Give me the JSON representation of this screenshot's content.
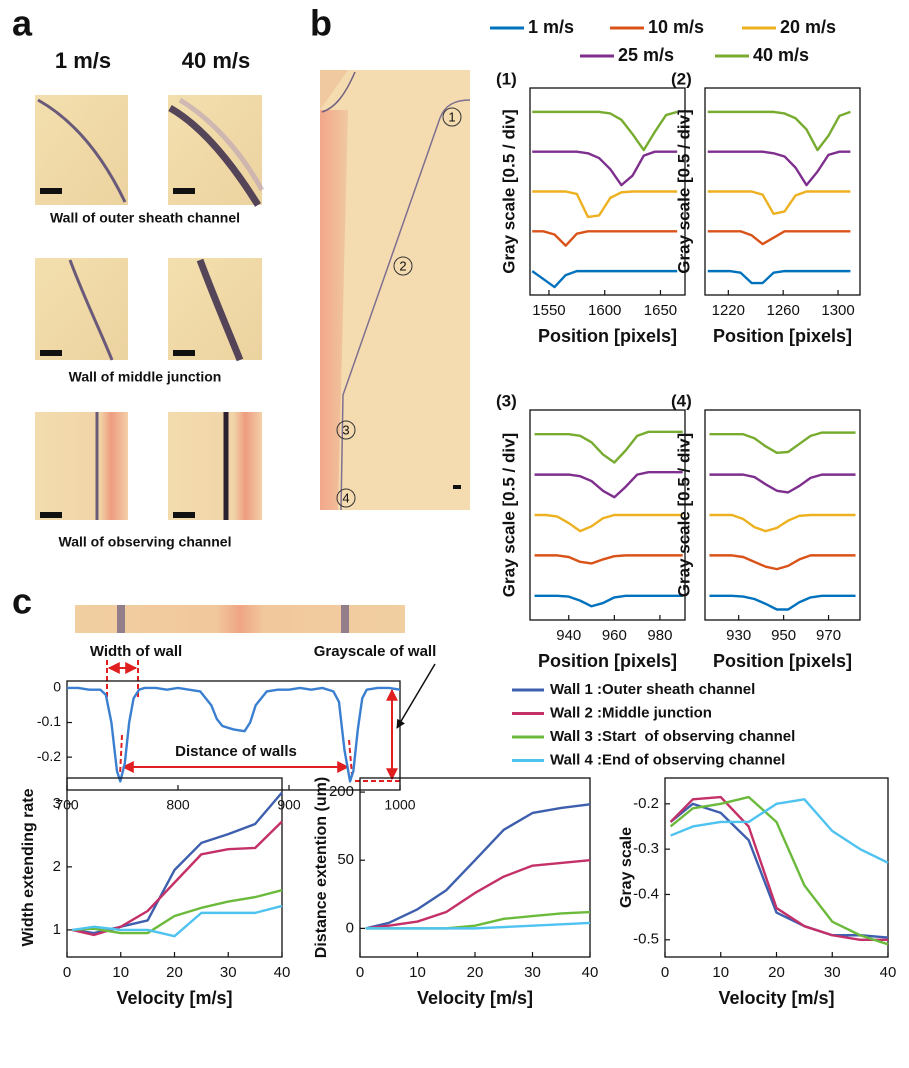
{
  "panel_labels": [
    "a",
    "b",
    "c"
  ],
  "panel_a": {
    "column_titles": [
      "1 m/s",
      "40 m/s"
    ],
    "captions": [
      "Wall of outer sheath channel",
      "Wall of middle junction",
      "Wall of observing channel"
    ]
  },
  "panel_b": {
    "markers": [
      "1",
      "2",
      "3",
      "4"
    ]
  },
  "panel_c": {
    "annotations": [
      "Width of wall",
      "Grayscale of wall",
      "Distance of walls"
    ]
  },
  "chart_data": [
    {
      "type": "line",
      "label": "(1)",
      "xlabel": "Position [pixels]",
      "ylabel": "Gray scale [0.5 / div]",
      "x": [
        1535,
        1545,
        1555,
        1565,
        1575,
        1585,
        1595,
        1605,
        1615,
        1625,
        1635,
        1645,
        1655,
        1665
      ],
      "xlim": [
        1533,
        1672
      ],
      "xticks": [
        1550,
        1600,
        1650
      ],
      "ylim": [
        -0.3,
        2.3
      ],
      "series": [
        {
          "name": "1 m/s",
          "color": "#0072bd",
          "values": [
            0,
            -0.1,
            -0.2,
            -0.05,
            0,
            0,
            0,
            0,
            0,
            0,
            0,
            0,
            0,
            0
          ]
        },
        {
          "name": "10 m/s",
          "color": "#d95319",
          "values": [
            0.5,
            0.5,
            0.46,
            0.32,
            0.47,
            0.5,
            0.5,
            0.5,
            0.5,
            0.5,
            0.5,
            0.5,
            0.5,
            0.5
          ]
        },
        {
          "name": "20 m/s",
          "color": "#edb120",
          "values": [
            1,
            1,
            1,
            1,
            0.97,
            0.68,
            0.7,
            0.92,
            0.99,
            1,
            1,
            1,
            1,
            1
          ]
        },
        {
          "name": "25 m/s",
          "color": "#7e2f8e",
          "values": [
            1.5,
            1.5,
            1.5,
            1.5,
            1.5,
            1.48,
            1.42,
            1.28,
            1.08,
            1.2,
            1.45,
            1.5,
            1.5,
            1.5
          ]
        },
        {
          "name": "40 m/s",
          "color": "#77ac30",
          "values": [
            2,
            2,
            2,
            2,
            2,
            2,
            2,
            1.98,
            1.9,
            1.72,
            1.52,
            1.75,
            1.96,
            2
          ]
        }
      ]
    },
    {
      "type": "line",
      "label": "(2)",
      "xlabel": "Position [pixels]",
      "ylabel": "Gray scale [0.5 / div]",
      "x": [
        1205,
        1213,
        1221,
        1229,
        1237,
        1245,
        1253,
        1261,
        1269,
        1277,
        1285,
        1293,
        1301,
        1309
      ],
      "xlim": [
        1203,
        1316
      ],
      "xticks": [
        1220,
        1260,
        1300
      ],
      "ylim": [
        -0.3,
        2.3
      ],
      "series": [
        {
          "values": [
            0,
            0,
            0,
            -0.02,
            -0.15,
            -0.15,
            -0.02,
            0,
            0,
            0,
            0,
            0,
            0,
            0
          ]
        },
        {
          "values": [
            0.5,
            0.5,
            0.5,
            0.5,
            0.45,
            0.34,
            0.42,
            0.5,
            0.5,
            0.5,
            0.5,
            0.5,
            0.5,
            0.5
          ]
        },
        {
          "values": [
            1,
            1,
            1,
            1,
            1,
            0.96,
            0.72,
            0.75,
            0.95,
            1,
            1,
            1,
            1,
            1
          ]
        },
        {
          "values": [
            1.5,
            1.5,
            1.5,
            1.5,
            1.5,
            1.5,
            1.48,
            1.44,
            1.3,
            1.08,
            1.25,
            1.46,
            1.5,
            1.5
          ]
        },
        {
          "values": [
            2,
            2,
            2,
            2,
            2,
            2,
            2,
            1.98,
            1.92,
            1.78,
            1.52,
            1.7,
            1.95,
            2
          ]
        }
      ]
    },
    {
      "type": "line",
      "label": "(3)",
      "xlabel": "Position [pixels]",
      "ylabel": "Gray scale [0.5 / div]",
      "x": [
        925,
        930,
        935,
        940,
        945,
        950,
        955,
        960,
        965,
        970,
        975,
        980,
        985,
        990
      ],
      "xlim": [
        923,
        991
      ],
      "xticks": [
        940,
        960,
        980
      ],
      "ylim": [
        -0.3,
        2.3
      ],
      "series": [
        {
          "values": [
            0,
            0,
            0,
            -0.01,
            -0.06,
            -0.13,
            -0.09,
            -0.02,
            0,
            0,
            0,
            0,
            0,
            0
          ]
        },
        {
          "values": [
            0.5,
            0.5,
            0.5,
            0.48,
            0.42,
            0.4,
            0.45,
            0.49,
            0.5,
            0.5,
            0.5,
            0.5,
            0.5,
            0.5
          ]
        },
        {
          "values": [
            1,
            1,
            0.98,
            0.9,
            0.8,
            0.86,
            0.96,
            1,
            1,
            1,
            1,
            1,
            1,
            1
          ]
        },
        {
          "values": [
            1.5,
            1.5,
            1.5,
            1.5,
            1.48,
            1.42,
            1.3,
            1.22,
            1.35,
            1.5,
            1.53,
            1.53,
            1.53,
            1.53
          ]
        },
        {
          "values": [
            2,
            2,
            2,
            2,
            1.98,
            1.9,
            1.75,
            1.65,
            1.8,
            1.98,
            2.03,
            2.03,
            2.03,
            2.03
          ]
        }
      ]
    },
    {
      "type": "line",
      "label": "(4)",
      "xlabel": "Position [pixels]",
      "ylabel": "Gray scale [0.5 / div]",
      "x": [
        917,
        922,
        927,
        932,
        937,
        942,
        947,
        952,
        957,
        962,
        967,
        972,
        977,
        982
      ],
      "xlim": [
        915,
        984
      ],
      "xticks": [
        930,
        950,
        970
      ],
      "ylim": [
        -0.3,
        2.3
      ],
      "series": [
        {
          "values": [
            0,
            0,
            0,
            -0.01,
            -0.04,
            -0.1,
            -0.17,
            -0.17,
            -0.08,
            -0.02,
            0,
            0,
            0,
            0
          ]
        },
        {
          "values": [
            0.5,
            0.5,
            0.5,
            0.48,
            0.42,
            0.36,
            0.33,
            0.37,
            0.45,
            0.5,
            0.5,
            0.5,
            0.5,
            0.5
          ]
        },
        {
          "values": [
            1,
            1,
            1,
            0.95,
            0.85,
            0.8,
            0.84,
            0.93,
            0.99,
            1,
            1,
            1,
            1,
            1
          ]
        },
        {
          "values": [
            1.5,
            1.5,
            1.5,
            1.5,
            1.47,
            1.38,
            1.3,
            1.28,
            1.36,
            1.46,
            1.5,
            1.5,
            1.5,
            1.5
          ]
        },
        {
          "values": [
            2,
            2,
            2,
            2,
            1.95,
            1.85,
            1.77,
            1.78,
            1.88,
            1.98,
            2.02,
            2.02,
            2.02,
            2.02
          ]
        }
      ]
    },
    {
      "type": "line",
      "color": "#3a7fd0",
      "x": [
        700,
        710,
        720,
        730,
        735,
        740,
        745,
        748,
        752,
        756,
        760,
        765,
        770,
        780,
        790,
        800,
        810,
        820,
        830,
        835,
        840,
        850,
        860,
        865,
        870,
        880,
        890,
        900,
        910,
        920,
        930,
        940,
        945,
        950,
        955,
        958,
        962,
        966,
        970,
        980,
        990,
        1000
      ],
      "values": [
        0,
        0,
        -0.005,
        -0.005,
        -0.02,
        -0.1,
        -0.24,
        -0.27,
        -0.22,
        -0.1,
        -0.03,
        -0.005,
        0,
        0,
        -0.005,
        0,
        -0.005,
        -0.01,
        -0.05,
        -0.09,
        -0.11,
        -0.12,
        -0.125,
        -0.1,
        -0.05,
        -0.01,
        -0.005,
        -0.005,
        0,
        -0.005,
        0,
        -0.01,
        -0.04,
        -0.18,
        -0.27,
        -0.24,
        -0.12,
        -0.03,
        -0.005,
        0,
        0,
        -0.005
      ],
      "xlim": [
        700,
        1000
      ],
      "xticks": [
        700,
        800,
        900,
        1000
      ],
      "ylim": [
        -0.295,
        0.02
      ],
      "yticks": [
        0,
        -0.1,
        -0.2
      ]
    },
    {
      "type": "line",
      "xlabel": "Velocity [m/s]",
      "ylabel": "Width extending rate",
      "x": [
        1,
        5,
        10,
        15,
        20,
        25,
        30,
        35,
        40
      ],
      "xlim": [
        0,
        40
      ],
      "xticks": [
        0,
        10,
        20,
        30,
        40
      ],
      "ylim": [
        0.57,
        3.41
      ],
      "yticks": [
        1,
        2,
        3
      ],
      "series": [
        {
          "name": "Wall 1 :Outer sheath channel",
          "color": "#3e5fae",
          "values": [
            1,
            0.95,
            1.05,
            1.15,
            1.95,
            2.38,
            2.52,
            2.68,
            3.18
          ]
        },
        {
          "name": "Wall 2 :Middle junction",
          "color": "#c43068",
          "values": [
            1,
            0.92,
            1.05,
            1.3,
            1.75,
            2.2,
            2.28,
            2.3,
            2.72
          ]
        },
        {
          "name": "Wall 3 :Start  of observing channel",
          "color": "#6cba3c",
          "values": [
            1,
            1.02,
            0.95,
            0.95,
            1.22,
            1.35,
            1.45,
            1.52,
            1.63
          ]
        },
        {
          "name": "Wall 4 :End of observing channel",
          "color": "#4fc3f0",
          "values": [
            1,
            1.05,
            1,
            1,
            0.9,
            1.27,
            1.27,
            1.27,
            1.38
          ]
        }
      ]
    },
    {
      "type": "line",
      "xlabel": "Velocity [m/s]",
      "ylabel": "Distance extention (um)",
      "yscale": "piecewise",
      "x": [
        1,
        5,
        10,
        15,
        20,
        25,
        30,
        35,
        40
      ],
      "xlim": [
        0,
        40
      ],
      "xticks": [
        0,
        10,
        20,
        30,
        40
      ],
      "ylim": [
        -21,
        231
      ],
      "yticks": [
        0,
        50,
        200
      ],
      "series": [
        {
          "values": [
            0,
            4,
            14,
            28,
            50,
            117,
            154,
            165,
            173
          ]
        },
        {
          "values": [
            0,
            2,
            5,
            12,
            26,
            38,
            46,
            48,
            50
          ]
        },
        {
          "values": [
            0,
            0,
            0,
            0,
            2,
            7,
            9,
            11,
            12
          ]
        },
        {
          "values": [
            0,
            0,
            0,
            0,
            0,
            1,
            2,
            3,
            4
          ]
        }
      ]
    },
    {
      "type": "line",
      "xlabel": "Velocity [m/s]",
      "ylabel": "Gray scale",
      "x": [
        1,
        5,
        10,
        15,
        20,
        25,
        30,
        35,
        40
      ],
      "xlim": [
        0,
        40
      ],
      "xticks": [
        0,
        10,
        20,
        30,
        40
      ],
      "ylim": [
        -0.538,
        -0.143
      ],
      "yticks": [
        -0.2,
        -0.3,
        -0.4,
        -0.5
      ],
      "series": [
        {
          "values": [
            -0.24,
            -0.2,
            -0.22,
            -0.28,
            -0.44,
            -0.47,
            -0.49,
            -0.49,
            -0.495
          ]
        },
        {
          "values": [
            -0.24,
            -0.19,
            -0.185,
            -0.25,
            -0.43,
            -0.47,
            -0.49,
            -0.5,
            -0.5
          ]
        },
        {
          "values": [
            -0.25,
            -0.21,
            -0.2,
            -0.185,
            -0.24,
            -0.38,
            -0.46,
            -0.49,
            -0.51
          ]
        },
        {
          "values": [
            -0.27,
            -0.25,
            -0.24,
            -0.24,
            -0.2,
            -0.19,
            -0.26,
            -0.3,
            -0.33
          ]
        }
      ]
    }
  ]
}
